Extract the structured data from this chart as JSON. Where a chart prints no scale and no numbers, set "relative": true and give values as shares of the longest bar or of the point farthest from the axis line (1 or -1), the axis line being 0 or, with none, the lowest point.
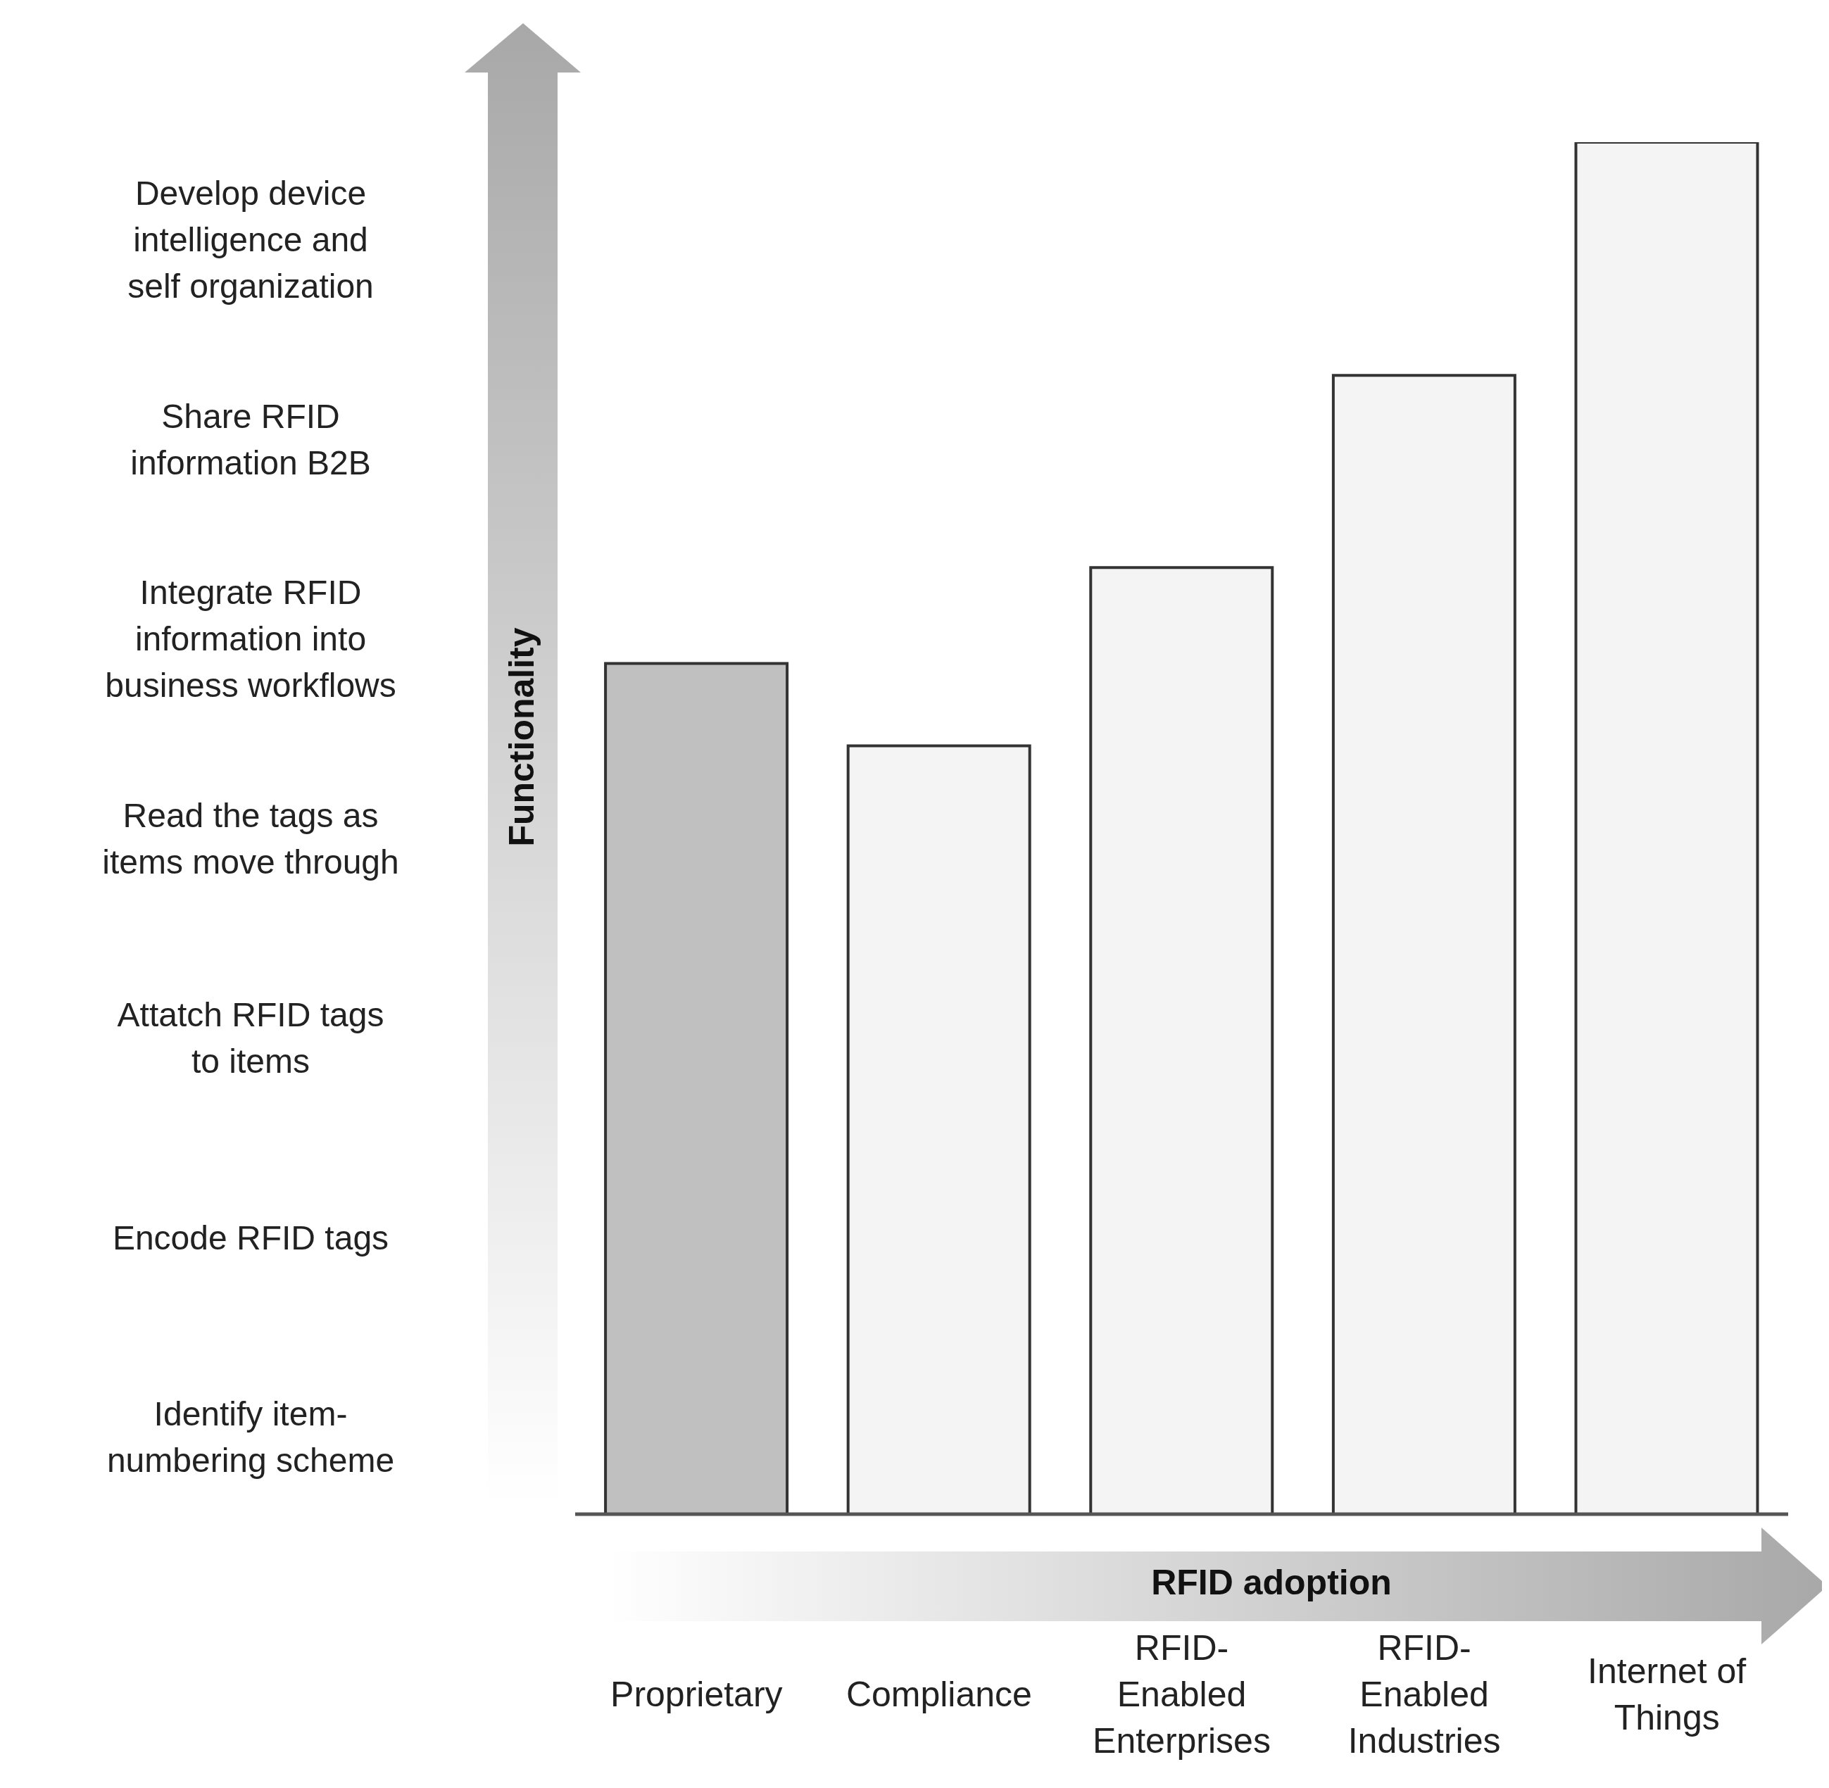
{
  "chart_data": {
    "type": "bar",
    "relative": true,
    "xlabel": "RFID adoption",
    "ylabel": "Functionality",
    "categories": [
      "Proprietary",
      "Compliance",
      "RFID-Enabled Enterprises",
      "RFID-Enabled Industries",
      "Internet of Things"
    ],
    "values": [
      0.62,
      0.56,
      0.69,
      0.83,
      1
    ],
    "colors": [
      "#c0c0c0",
      "#f4f4f4",
      "#f4f4f4",
      "#f4f4f4",
      "#f4f4f4"
    ],
    "annotations": [
      "Develop device intelligence and self organization",
      "Share RFID information B2B",
      "Integrate RFID information into business workflows",
      "Read the tags as items move through",
      "Attatch RFID tags to items",
      "Encode RFID tags",
      "Identify item-numbering scheme"
    ]
  }
}
